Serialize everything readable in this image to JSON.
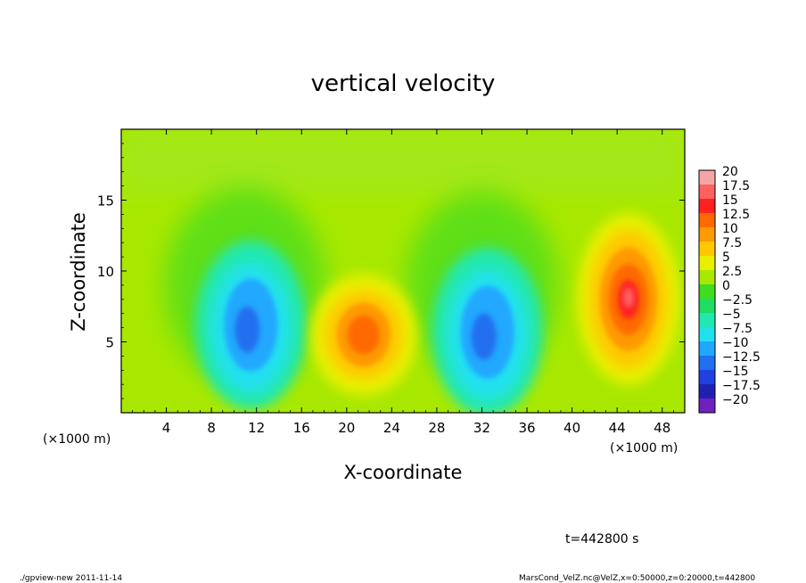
{
  "chart_data": {
    "type": "heatmap",
    "title": "vertical velocity",
    "xlabel": "X-coordinate",
    "ylabel": "Z-coordinate",
    "x_unit_note": "(×1000 m)",
    "x_unit_note_left": "(×1000 m)",
    "xlim": [
      0,
      50
    ],
    "ylim": [
      0,
      20
    ],
    "xticks": [
      4,
      8,
      12,
      16,
      20,
      24,
      28,
      32,
      36,
      40,
      44,
      48
    ],
    "yticks": [
      5,
      10,
      15
    ],
    "colorbar": {
      "levels": [
        20,
        17.5,
        15,
        12.5,
        10,
        7.5,
        5,
        2.5,
        0,
        -2.5,
        -5,
        -7.5,
        -10,
        -12.5,
        -15,
        -17.5,
        -20
      ],
      "labels": [
        "20",
        "17.5",
        "15",
        "12.5",
        "10",
        "7.5",
        "5",
        "2.5",
        "0",
        "−2.5",
        "−5",
        "−7.5",
        "−10",
        "−12.5",
        "−15",
        "−17.5",
        "−20"
      ],
      "colors": [
        "#f4a6a6",
        "#ff6060",
        "#ff2020",
        "#ff6a00",
        "#ff9a00",
        "#ffc800",
        "#e8f000",
        "#a8e800",
        "#40dc20",
        "#20dc60",
        "#20e8b0",
        "#20e0f0",
        "#20a8ff",
        "#2070f0",
        "#2040e0",
        "#2020b0",
        "#7020c0"
      ]
    },
    "features": [
      {
        "kind": "downdraft",
        "x": 11.5,
        "z": 6.5,
        "peak": -10
      },
      {
        "kind": "updraft",
        "x": 21.5,
        "z": 5.5,
        "peak": 12.5
      },
      {
        "kind": "downdraft",
        "x": 32.5,
        "z": 6.0,
        "peak": -10
      },
      {
        "kind": "updraft",
        "x": 45.0,
        "z": 8.0,
        "peak": 17.5
      }
    ]
  },
  "time_label": "t=442800 s",
  "footer": {
    "left": "./gpview-new  2011-11-14",
    "right": "MarsCond_VelZ.nc@VelZ,x=0:50000,z=0:20000,t=442800"
  }
}
